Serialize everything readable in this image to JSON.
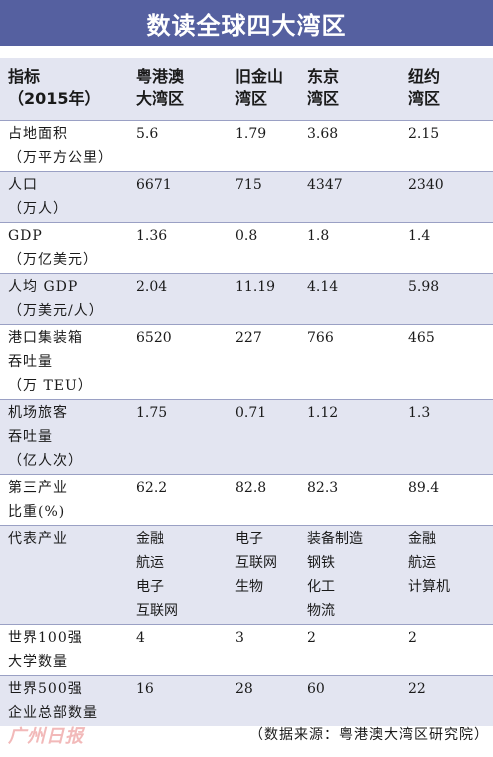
{
  "title": "数读全球四大湾区",
  "header": {
    "metric": "指标\n（2015年）",
    "columns": [
      "粤港澳\n大湾区",
      "旧金山\n湾区",
      "东京\n湾区",
      "纽约\n湾区"
    ]
  },
  "rows": [
    {
      "label": "占地面积\n（万平方公里）",
      "values": [
        "5.6",
        "1.79",
        "3.68",
        "2.15"
      ]
    },
    {
      "label": "人口\n（万人）",
      "values": [
        "6671",
        "715",
        "4347",
        "2340"
      ]
    },
    {
      "label": "GDP\n（万亿美元）",
      "values": [
        "1.36",
        "0.8",
        "1.8",
        "1.4"
      ]
    },
    {
      "label": "人均 GDP\n（万美元/人）",
      "values": [
        "2.04",
        "11.19",
        "4.14",
        "5.98"
      ]
    },
    {
      "label": "港口集装箱\n吞吐量\n（万 TEU）",
      "values": [
        "6520",
        "227",
        "766",
        "465"
      ]
    },
    {
      "label": "机场旅客\n吞吐量\n（亿人次）",
      "values": [
        "1.75",
        "0.71",
        "1.12",
        "1.3"
      ]
    },
    {
      "label": "第三产业\n比重(%)",
      "values": [
        "62.2",
        "82.8",
        "82.3",
        "89.4"
      ]
    },
    {
      "label": "代表产业",
      "values": [
        "金融\n航运\n电子\n互联网",
        "电子\n互联网\n生物",
        "装备制造\n钢铁\n化工\n物流",
        "金融\n航运\n计算机"
      ]
    },
    {
      "label": "世界100强\n大学数量",
      "values": [
        "4",
        "3",
        "2",
        "2"
      ]
    },
    {
      "label": "世界500强\n企业总部数量",
      "values": [
        "16",
        "28",
        "60",
        "22"
      ]
    }
  ],
  "footer": {
    "logo_text": "广州日报",
    "source": "（数据来源：粤港澳大湾区研究院）"
  }
}
